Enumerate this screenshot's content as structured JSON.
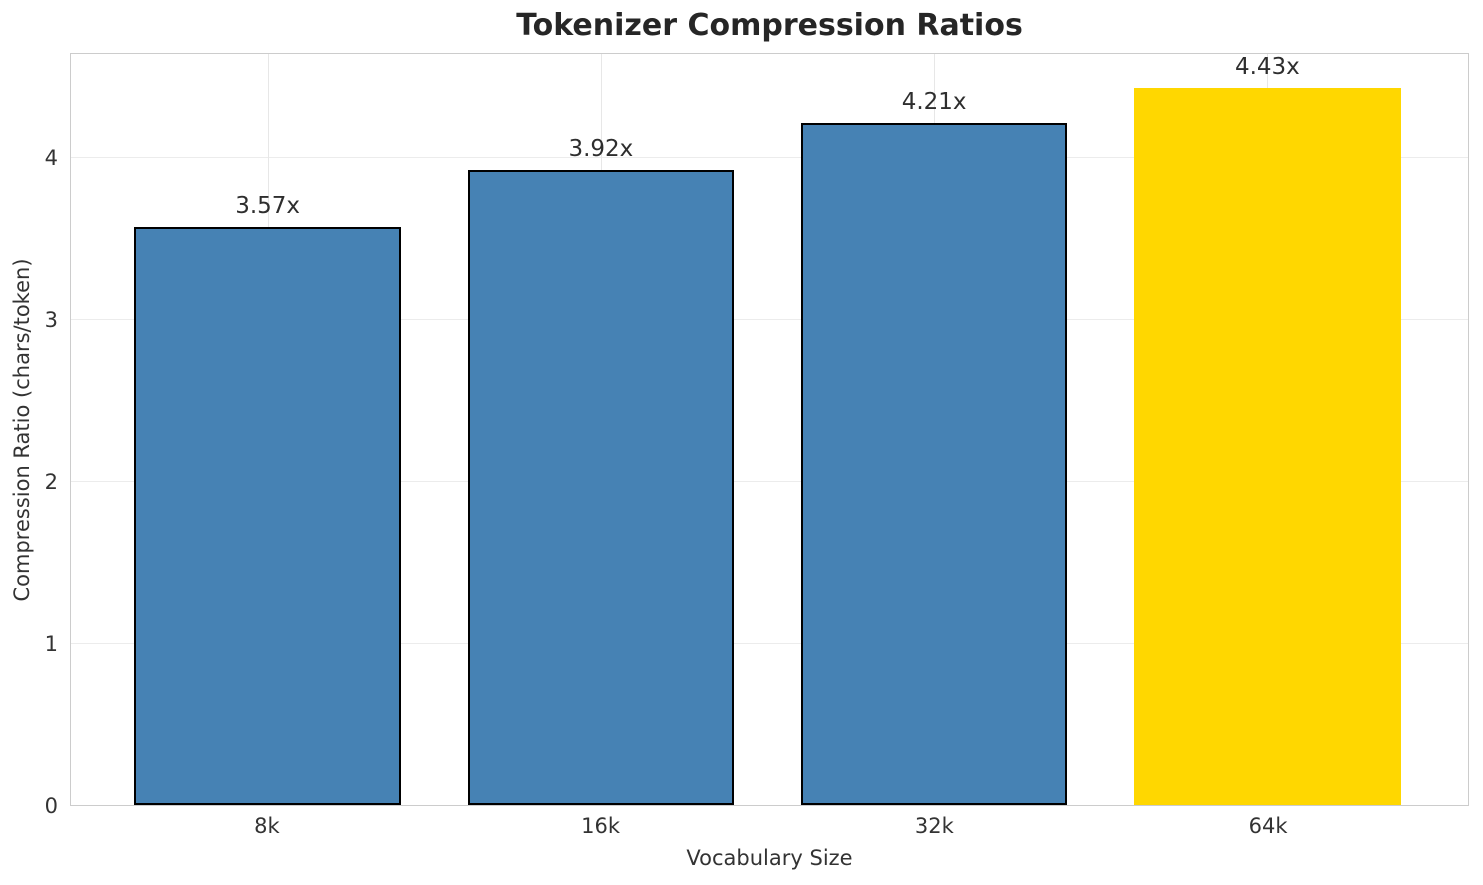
{
  "chart_data": {
    "type": "bar",
    "title": "Tokenizer Compression Ratios",
    "xlabel": "Vocabulary Size",
    "ylabel": "Compression Ratio (chars/token)",
    "categories": [
      "8k",
      "16k",
      "32k",
      "64k"
    ],
    "values": [
      3.57,
      3.92,
      4.21,
      4.43
    ],
    "value_labels": [
      "3.57x",
      "3.92x",
      "4.21x",
      "4.43x"
    ],
    "yticks": [
      0,
      1,
      2,
      3,
      4
    ],
    "ylim": [
      0,
      4.65
    ],
    "grid": true,
    "legend": "none",
    "bar_fill_colors": [
      "#4682B4",
      "#4682B4",
      "#4682B4",
      "#FFD700"
    ],
    "bar_edge_colors": [
      "#000000",
      "#000000",
      "#000000",
      "none"
    ],
    "highlight_index": 3,
    "grid_color": "#ececec",
    "spine_color": "#cccccc",
    "text_color": "#333333",
    "title_color": "#262626"
  }
}
